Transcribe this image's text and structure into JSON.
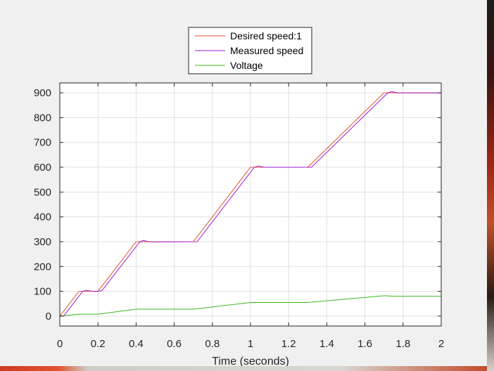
{
  "chart_data": {
    "type": "line",
    "title": "",
    "xlabel": "Time (seconds)",
    "ylabel": "",
    "xlim": [
      0,
      2
    ],
    "ylim": [
      -40,
      940
    ],
    "grid": true,
    "legend_position": "top-center",
    "x_ticks": [
      "0",
      "0.2",
      "0.4",
      "0.6",
      "0.8",
      "1",
      "1.2",
      "1.4",
      "1.6",
      "1.8",
      "2"
    ],
    "y_ticks": [
      "0",
      "100",
      "200",
      "300",
      "400",
      "500",
      "600",
      "700",
      "800",
      "900"
    ],
    "series": [
      {
        "name": "Desired speed:1",
        "color": "#e0502a",
        "x": [
          0,
          0.1,
          0.2,
          0.4,
          0.7,
          1.0,
          1.3,
          1.7,
          2.0,
          2.0
        ],
        "y": [
          0,
          100,
          100,
          300,
          300,
          600,
          600,
          900,
          900,
          0
        ]
      },
      {
        "name": "Measured speed",
        "color": "#9a1ad6",
        "x": [
          0,
          0.02,
          0.12,
          0.14,
          0.18,
          0.22,
          0.42,
          0.44,
          0.47,
          0.72,
          1.02,
          1.04,
          1.07,
          1.32,
          1.72,
          1.74,
          1.77,
          2.0
        ],
        "y": [
          0,
          0,
          100,
          104,
          99,
          102,
          300,
          305,
          299,
          300,
          600,
          605,
          600,
          600,
          900,
          905,
          900,
          900
        ]
      },
      {
        "name": "Voltage",
        "color": "#39b91b",
        "x": [
          0,
          0.1,
          0.2,
          0.4,
          0.7,
          1.0,
          1.3,
          1.7,
          1.75,
          2.0
        ],
        "y": [
          0,
          8,
          8,
          28,
          28,
          55,
          55,
          82,
          80,
          80
        ]
      }
    ]
  }
}
